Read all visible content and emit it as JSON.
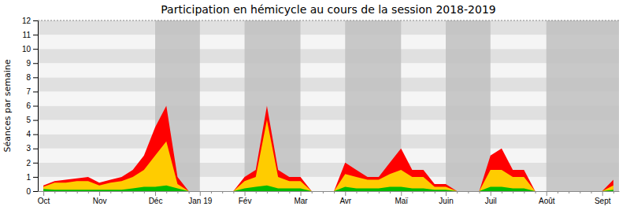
{
  "chart_data": {
    "type": "area",
    "title": "Participation en hémicycle au cours de la session 2018-2019",
    "y_label": "Séances par semaine",
    "categories": [
      "Oct",
      null,
      null,
      null,
      null,
      "Nov",
      null,
      null,
      null,
      null,
      "Déc",
      null,
      null,
      null,
      "Jan 19",
      null,
      null,
      null,
      "Fév",
      null,
      null,
      null,
      null,
      "Mar",
      null,
      null,
      null,
      "Avr",
      null,
      null,
      null,
      null,
      "Maï",
      null,
      null,
      null,
      "Juin",
      null,
      null,
      null,
      "Juil",
      null,
      null,
      null,
      null,
      "Août",
      null,
      null,
      null,
      null,
      "Sept",
      null
    ],
    "series": [
      {
        "color": "#ff0000",
        "values": [
          0.4,
          0.7,
          0.8,
          0.9,
          1.0,
          0.6,
          0.8,
          1.0,
          1.5,
          2.5,
          4.5,
          6.0,
          1.0,
          0.0,
          0.0,
          0.0,
          0.0,
          0.0,
          1.0,
          1.5,
          6.0,
          1.5,
          1.0,
          1.0,
          0.0,
          0.0,
          0.0,
          2.0,
          1.5,
          1.0,
          1.0,
          2.0,
          3.0,
          1.5,
          1.5,
          0.5,
          0.5,
          0.0,
          0.0,
          0.0,
          2.5,
          3.0,
          1.5,
          1.5,
          0.0,
          0.0,
          0.0,
          0.0,
          0.0,
          0.0,
          0.0,
          0.8
        ]
      },
      {
        "color": "#ffcc00",
        "values": [
          0.3,
          0.6,
          0.6,
          0.7,
          0.7,
          0.4,
          0.6,
          0.7,
          1.0,
          1.5,
          2.5,
          3.5,
          0.5,
          0.0,
          0.0,
          0.0,
          0.0,
          0.0,
          0.7,
          1.0,
          5.0,
          1.0,
          0.7,
          0.7,
          0.0,
          0.0,
          0.0,
          1.2,
          1.0,
          0.8,
          0.8,
          1.2,
          1.5,
          1.0,
          1.0,
          0.3,
          0.3,
          0.0,
          0.0,
          0.0,
          1.5,
          1.5,
          1.0,
          1.0,
          0.0,
          0.0,
          0.0,
          0.0,
          0.0,
          0.0,
          0.0,
          0.4
        ]
      },
      {
        "color": "#00bb00",
        "values": [
          0.15,
          0.1,
          0.1,
          0.1,
          0.1,
          0.1,
          0.1,
          0.1,
          0.2,
          0.3,
          0.3,
          0.4,
          0.2,
          0.0,
          0.0,
          0.0,
          0.0,
          0.0,
          0.2,
          0.3,
          0.4,
          0.2,
          0.2,
          0.2,
          0.0,
          0.0,
          0.0,
          0.3,
          0.2,
          0.2,
          0.2,
          0.3,
          0.3,
          0.2,
          0.2,
          0.1,
          0.1,
          0.0,
          0.0,
          0.0,
          0.3,
          0.3,
          0.2,
          0.2,
          0.0,
          0.0,
          0.0,
          0.0,
          0.0,
          0.0,
          0.0,
          0.1
        ]
      }
    ],
    "bands": [
      [
        10.0,
        14.0
      ],
      [
        18.0,
        23.0
      ],
      [
        27.0,
        32.0
      ],
      [
        36.0,
        40.0
      ],
      [
        45.0,
        52.0
      ]
    ],
    "ylim": [
      0,
      12
    ],
    "yticks": [
      0,
      1,
      2,
      3,
      4,
      5,
      6,
      7,
      8,
      9,
      10,
      11,
      12
    ]
  }
}
